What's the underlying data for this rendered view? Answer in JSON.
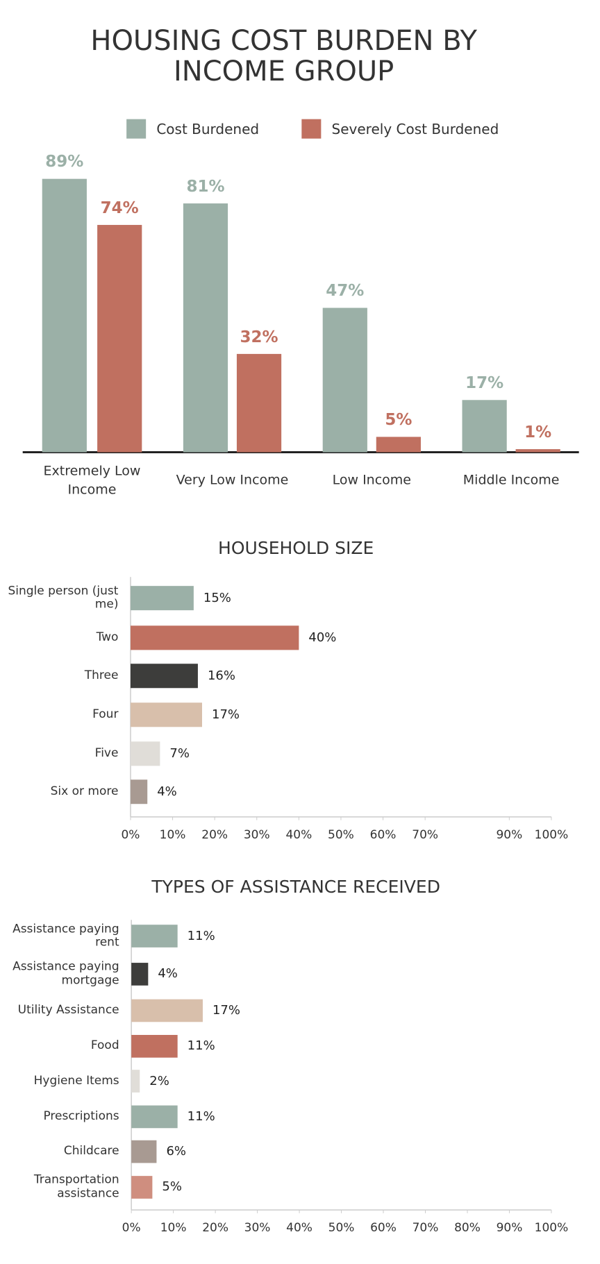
{
  "chart_data": [
    {
      "type": "grouped-bar",
      "title": "HOUSING COST BURDEN BY INCOME GROUP",
      "categories": [
        "Extremely Low Income",
        "Very Low Income",
        "Low Income",
        "Middle Income"
      ],
      "series": [
        {
          "name": "Cost Burdened",
          "color": "#9bb0a7",
          "values": [
            89,
            81,
            47,
            17
          ],
          "value_labels": [
            "89%",
            "81%",
            "47%",
            "17%"
          ]
        },
        {
          "name": "Severely Cost Burdened",
          "color": "#c07060",
          "values": [
            74,
            32,
            5,
            1
          ],
          "value_labels": [
            "74%",
            "32%",
            "5%",
            "1%"
          ]
        }
      ],
      "legend": "top"
    },
    {
      "type": "hbar",
      "title": "HOUSEHOLD SIZE",
      "categories": [
        "Single person (just me)",
        "Two",
        "Three",
        "Four",
        "Five",
        "Six or more"
      ],
      "values": [
        15,
        40,
        16,
        17,
        7,
        4
      ],
      "value_labels": [
        "15%",
        "40%",
        "16%",
        "17%",
        "7%",
        "4%"
      ],
      "colors": [
        "#9bb0a7",
        "#c07060",
        "#3d3d3b",
        "#d8bfab",
        "#e0ddd8",
        "#a89a92"
      ],
      "xlim": [
        0,
        100
      ],
      "xticks": [
        {
          "value": 0,
          "label": "0%"
        },
        {
          "value": 10,
          "label": "10%"
        },
        {
          "value": 20,
          "label": "20%"
        },
        {
          "value": 30,
          "label": "30%"
        },
        {
          "value": 40,
          "label": "40%"
        },
        {
          "value": 50,
          "label": "50%"
        },
        {
          "value": 60,
          "label": "60%"
        },
        {
          "value": 70,
          "label": "70%"
        },
        {
          "value": 90,
          "label": "90%"
        },
        {
          "value": 100,
          "label": "100%"
        }
      ]
    },
    {
      "type": "hbar",
      "title": "TYPES OF ASSISTANCE RECEIVED",
      "categories": [
        "Assistance paying rent",
        "Assistance paying mortgage",
        "Utility Assistance",
        "Food",
        "Hygiene Items",
        "Prescriptions",
        "Childcare",
        "Transportation assistance"
      ],
      "values": [
        11,
        4,
        17,
        11,
        2,
        11,
        6,
        5
      ],
      "value_labels": [
        "11%",
        "4%",
        "17%",
        "11%",
        "2%",
        "11%",
        "6%",
        "5%"
      ],
      "colors": [
        "#9bb0a7",
        "#3d3d3b",
        "#d8bfab",
        "#c07060",
        "#e0ddd8",
        "#9bb0a7",
        "#a89a92",
        "#cf8e7f"
      ],
      "xlim": [
        0,
        100
      ],
      "xticks": [
        {
          "value": 0,
          "label": "0%"
        },
        {
          "value": 10,
          "label": "10%"
        },
        {
          "value": 20,
          "label": "20%"
        },
        {
          "value": 30,
          "label": "30%"
        },
        {
          "value": 40,
          "label": "40%"
        },
        {
          "value": 50,
          "label": "50%"
        },
        {
          "value": 60,
          "label": "60%"
        },
        {
          "value": 70,
          "label": "70%"
        },
        {
          "value": 80,
          "label": "80%"
        },
        {
          "value": 90,
          "label": "90%"
        },
        {
          "value": 100,
          "label": "100%"
        }
      ]
    }
  ]
}
